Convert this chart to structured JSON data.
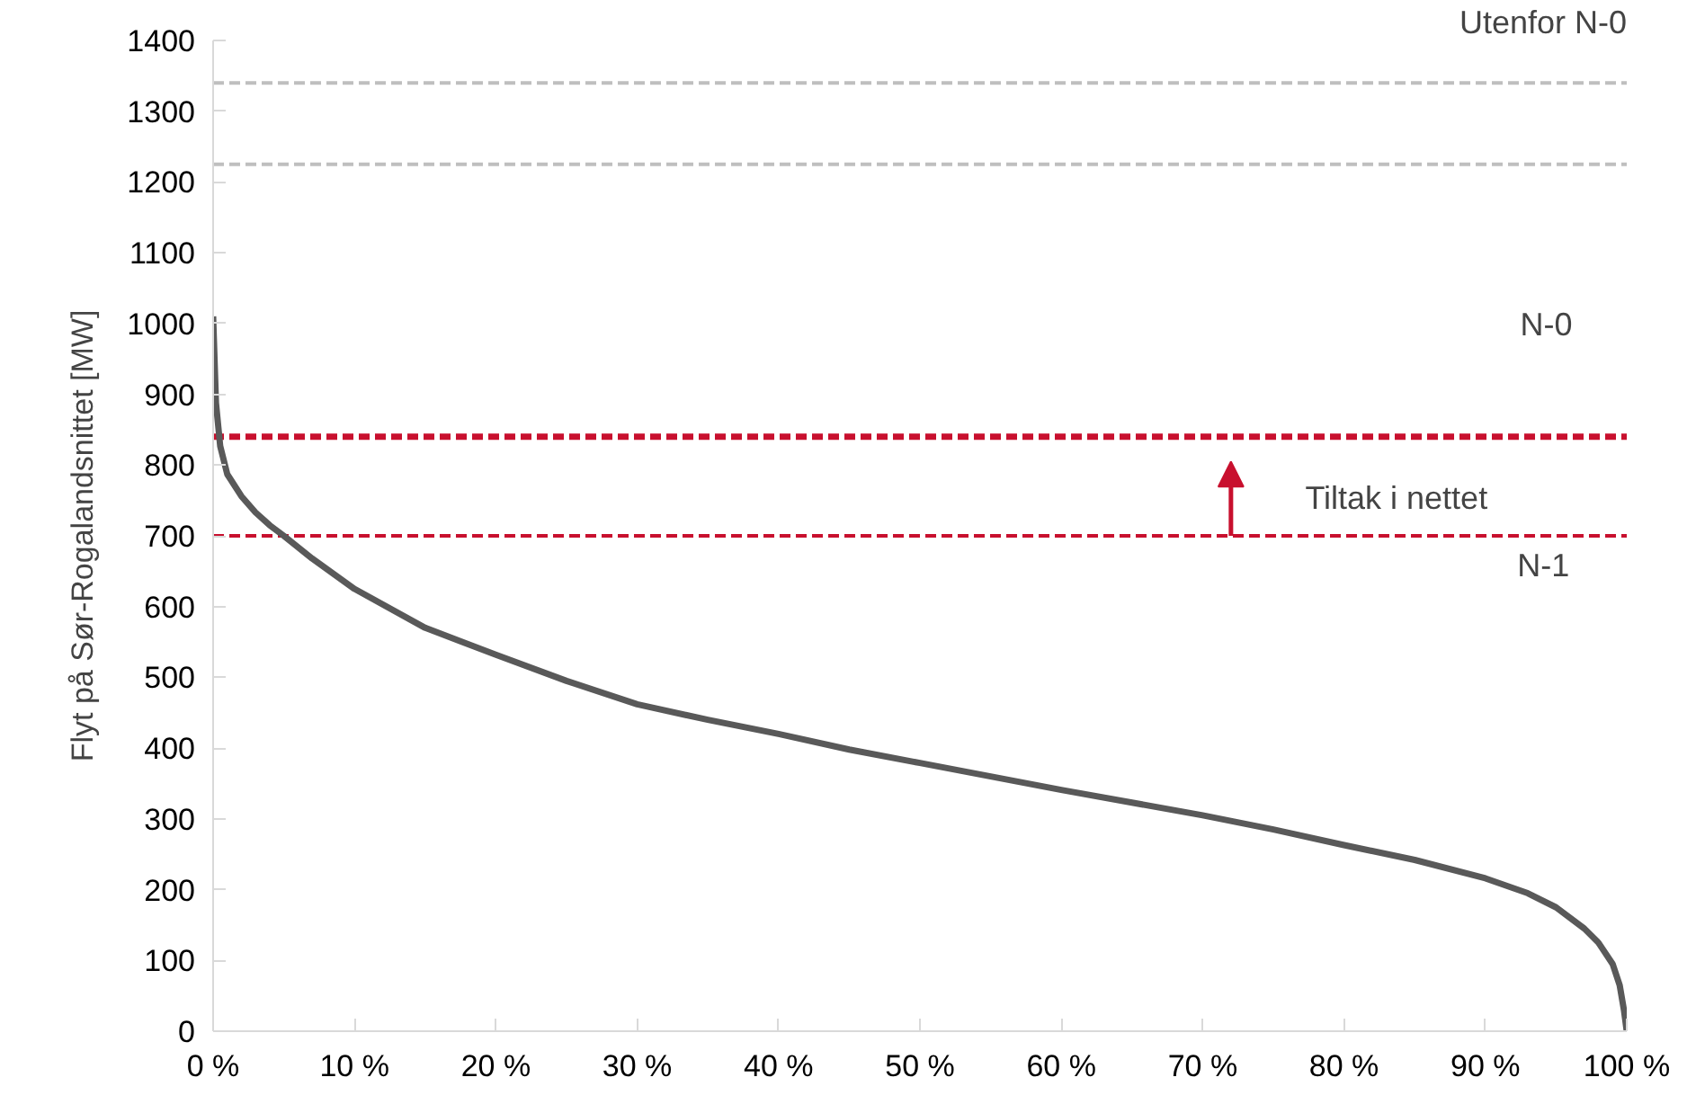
{
  "chart_data": {
    "type": "line",
    "ylabel": "Flyt på Sør-Rogalandsnittet [MW]",
    "xlim": [
      0,
      100
    ],
    "ylim": [
      0,
      1400
    ],
    "xticks": [
      {
        "value": 0,
        "label": "0 %"
      },
      {
        "value": 10,
        "label": "10 %"
      },
      {
        "value": 20,
        "label": "20 %"
      },
      {
        "value": 30,
        "label": "30 %"
      },
      {
        "value": 40,
        "label": "40 %"
      },
      {
        "value": 50,
        "label": "50 %"
      },
      {
        "value": 60,
        "label": "60 %"
      },
      {
        "value": 70,
        "label": "70 %"
      },
      {
        "value": 80,
        "label": "80 %"
      },
      {
        "value": 90,
        "label": "90 %"
      },
      {
        "value": 100,
        "label": "100 %"
      }
    ],
    "yticks": [
      0,
      100,
      200,
      300,
      400,
      500,
      600,
      700,
      800,
      900,
      1000,
      1100,
      1200,
      1300,
      1400
    ],
    "grid": false,
    "marker": "none",
    "line_style": "solid",
    "series": [
      {
        "color": "#595959",
        "x": [
          0,
          0.2,
          0.5,
          1,
          2,
          3,
          4,
          5,
          7,
          10,
          15,
          20,
          25,
          30,
          35,
          40,
          45,
          50,
          55,
          60,
          65,
          70,
          75,
          80,
          85,
          90,
          93,
          95,
          97,
          98,
          99,
          99.5,
          99.8,
          100
        ],
        "values": [
          1010,
          888,
          827,
          787,
          756,
          733,
          715,
          700,
          668,
          625,
          570,
          532,
          495,
          462,
          440,
          420,
          398,
          379,
          360,
          341,
          323,
          305,
          285,
          263,
          242,
          216,
          195,
          175,
          145,
          125,
          95,
          65,
          30,
          0
        ]
      }
    ],
    "ref_lines": [
      {
        "axis": "y",
        "value": 1340,
        "color": "#bfbfbf",
        "line_style": "dashed"
      },
      {
        "axis": "y",
        "value": 1225,
        "color": "#bfbfbf",
        "line_style": "dashed"
      },
      {
        "axis": "y",
        "value": 840,
        "color": "#c8102e",
        "line_style": "dashed"
      },
      {
        "axis": "y",
        "value": 700,
        "color": "#c8102e",
        "line_style": "dashed"
      }
    ],
    "annotations": [
      "Utenfor N-0",
      "N-0",
      "N-1",
      "Tiltak i nettet"
    ]
  }
}
